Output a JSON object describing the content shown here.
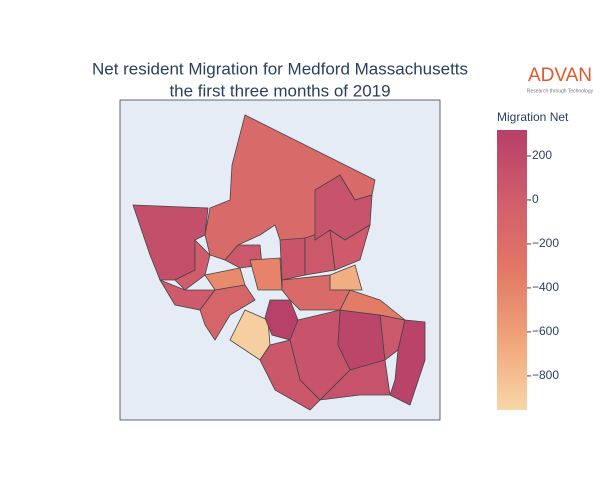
{
  "chart_data": {
    "type": "choropleth",
    "title": [
      "Net resident Migration for Medford Massachusetts",
      "the first three months of 2019"
    ],
    "colorbar": {
      "title": "Migration Net",
      "clim": [
        -955,
        318
      ],
      "ticks": [
        200,
        0,
        {
          "value": -200,
          "label": "−200"
        },
        {
          "value": -400,
          "label": "−400"
        },
        {
          "value": -600,
          "label": "−600"
        },
        {
          "value": -800,
          "label": "−800"
        }
      ]
    },
    "colorscale": [
      "#f7d7a7",
      "#f0a479",
      "#e27865",
      "#d05d6c",
      "#b73f69"
    ],
    "regions": {
      "values": [
        -150,
        150,
        0,
        -450,
        50,
        30,
        -100,
        -900,
        300,
        -400,
        80,
        50,
        100,
        30,
        -700,
        250,
        50,
        280,
        -350,
        -150,
        100,
        60,
        120
      ]
    }
  },
  "logo": {
    "name": "ADVAN",
    "tagline": "Research through Technology"
  }
}
